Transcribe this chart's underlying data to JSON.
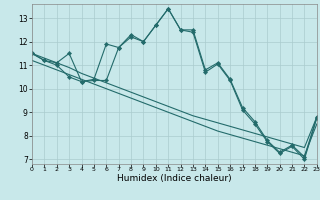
{
  "xlabel": "Humidex (Indice chaleur)",
  "xlim": [
    0,
    23
  ],
  "ylim": [
    6.8,
    13.6
  ],
  "yticks": [
    7,
    8,
    9,
    10,
    11,
    12,
    13
  ],
  "xticks": [
    0,
    1,
    2,
    3,
    4,
    5,
    6,
    7,
    8,
    9,
    10,
    11,
    12,
    13,
    14,
    15,
    16,
    17,
    18,
    19,
    20,
    21,
    22,
    23
  ],
  "background_color": "#c8e8ea",
  "grid_color": "#aaccce",
  "line_color": "#236b6b",
  "line1": [
    11.5,
    11.2,
    11.1,
    11.5,
    10.3,
    10.4,
    11.9,
    11.75,
    12.3,
    12.0,
    12.7,
    13.4,
    12.5,
    12.5,
    10.8,
    11.1,
    10.4,
    9.2,
    8.6,
    7.8,
    7.3,
    7.6,
    7.1,
    8.8
  ],
  "line2": [
    11.5,
    11.2,
    11.0,
    10.5,
    10.3,
    10.35,
    10.35,
    11.75,
    12.2,
    12.0,
    12.7,
    13.4,
    12.5,
    12.4,
    10.7,
    11.05,
    10.35,
    9.1,
    8.5,
    7.75,
    7.25,
    7.55,
    7.0,
    8.75
  ],
  "line3": [
    11.5,
    11.3,
    11.1,
    10.9,
    10.65,
    10.45,
    10.25,
    10.05,
    9.85,
    9.65,
    9.45,
    9.25,
    9.05,
    8.85,
    8.7,
    8.55,
    8.4,
    8.25,
    8.1,
    7.95,
    7.8,
    7.65,
    7.5,
    8.8
  ],
  "line4": [
    11.2,
    11.0,
    10.8,
    10.6,
    10.4,
    10.2,
    10.0,
    9.8,
    9.6,
    9.4,
    9.2,
    9.0,
    8.8,
    8.6,
    8.4,
    8.2,
    8.05,
    7.9,
    7.75,
    7.6,
    7.45,
    7.3,
    7.15,
    8.5
  ]
}
